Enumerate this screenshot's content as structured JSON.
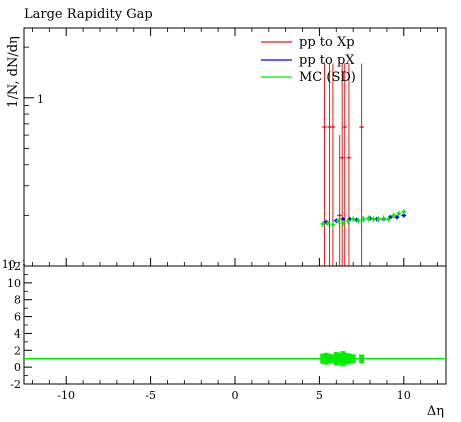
{
  "chart_data": [
    {
      "type": "scatter",
      "title": "Large Rapidity Gap",
      "ylabel": "1/N, dN/dη",
      "xlim": [
        -12.5,
        12.5
      ],
      "ylim": [
        0.1,
        2.6
      ],
      "yscale": "log",
      "yticks": [
        {
          "value": 1,
          "label": "1"
        },
        {
          "value": 0.1,
          "label": "10⁻¹"
        }
      ],
      "legend_position": "top-right",
      "series": [
        {
          "name": "pp to Xp",
          "color": "#e41a1c",
          "x": [
            5.3,
            5.6,
            5.8,
            6.2,
            6.35,
            6.5,
            6.75,
            7.5
          ],
          "y": [
            0.67,
            0.67,
            0.67,
            0.2,
            0.44,
            0.67,
            0.44,
            0.67
          ],
          "ylow": [
            0.1,
            0.1,
            0.1,
            0.1,
            0.1,
            0.1,
            0.1,
            0.1
          ],
          "yhigh": [
            1.6,
            1.6,
            1.6,
            0.6,
            1.6,
            1.6,
            1.6,
            1.6
          ]
        },
        {
          "name": "pp to pX",
          "color": "#0000ff",
          "x": [
            5.4,
            6.0,
            6.4,
            6.8,
            7.2,
            7.6,
            8.0,
            8.4,
            8.8,
            9.2,
            9.6,
            10.0
          ],
          "y": [
            0.182,
            0.186,
            0.19,
            0.19,
            0.188,
            0.19,
            0.192,
            0.19,
            0.19,
            0.195,
            0.195,
            0.2
          ],
          "ylow": [
            0.176,
            0.18,
            0.184,
            0.184,
            0.182,
            0.184,
            0.186,
            0.184,
            0.184,
            0.189,
            0.189,
            0.194
          ],
          "yhigh": [
            0.188,
            0.192,
            0.196,
            0.196,
            0.194,
            0.196,
            0.198,
            0.196,
            0.196,
            0.201,
            0.201,
            0.206
          ]
        },
        {
          "name": "MC (SD)",
          "color": "#00ee00",
          "x": [
            5.2,
            5.5,
            5.8,
            6.1,
            6.4,
            6.7,
            7.0,
            7.3,
            7.6,
            7.9,
            8.2,
            8.5,
            8.8,
            9.1,
            9.4,
            9.7,
            10.0
          ],
          "y": [
            0.178,
            0.18,
            0.176,
            0.185,
            0.18,
            0.185,
            0.19,
            0.186,
            0.19,
            0.192,
            0.19,
            0.19,
            0.192,
            0.19,
            0.2,
            0.205,
            0.21
          ],
          "ylow": [
            0.17,
            0.172,
            0.168,
            0.177,
            0.172,
            0.177,
            0.182,
            0.178,
            0.182,
            0.184,
            0.182,
            0.182,
            0.184,
            0.182,
            0.192,
            0.197,
            0.202
          ],
          "yhigh": [
            0.186,
            0.188,
            0.184,
            0.193,
            0.188,
            0.193,
            0.198,
            0.194,
            0.198,
            0.2,
            0.198,
            0.198,
            0.2,
            0.198,
            0.208,
            0.213,
            0.218
          ]
        }
      ]
    },
    {
      "type": "scatter",
      "xlabel": "Δη",
      "xlim": [
        -12.5,
        12.5
      ],
      "ylim": [
        -2,
        12
      ],
      "xticks": [
        -10,
        -5,
        0,
        5,
        10
      ],
      "yticks": [
        -2,
        0,
        2,
        4,
        6,
        8,
        10,
        12
      ],
      "reference_line": 1,
      "series": [
        {
          "name": "MC (SD)",
          "color": "#00ee00",
          "x": [
            5.2,
            5.4,
            5.6,
            5.8,
            6.0,
            6.2,
            6.4,
            6.6,
            6.8,
            7.0,
            7.5
          ],
          "y": [
            1,
            1,
            1,
            1,
            1,
            1,
            1,
            1,
            1,
            1,
            1
          ],
          "ylow": [
            0.4,
            0.3,
            0.4,
            0.5,
            0.2,
            0.3,
            0.1,
            0.3,
            0.4,
            0.5,
            0.5
          ],
          "yhigh": [
            1.6,
            1.7,
            1.6,
            1.5,
            1.8,
            1.7,
            1.9,
            1.7,
            1.6,
            1.5,
            1.5
          ]
        }
      ]
    }
  ]
}
